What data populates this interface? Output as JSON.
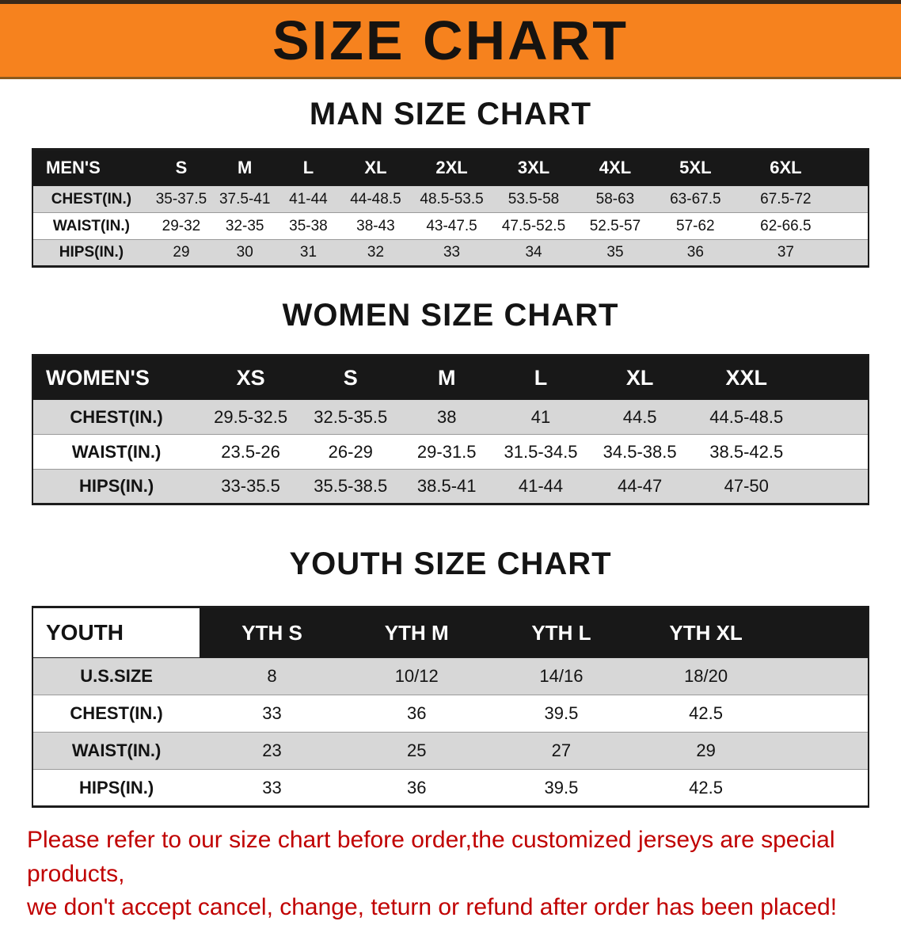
{
  "banner": {
    "title": "SIZE CHART"
  },
  "colors": {
    "banner_bg": "#f6821e",
    "header_bg": "#181818",
    "row_alt": "#d7d7d7",
    "disclaimer": "#c00000"
  },
  "tables": {
    "men": {
      "heading": "MAN SIZE CHART",
      "corner_label": "MEN'S",
      "columns": [
        "S",
        "M",
        "L",
        "XL",
        "2XL",
        "3XL",
        "4XL",
        "5XL",
        "6XL"
      ],
      "rows": [
        {
          "label": "CHEST(IN.)",
          "values": [
            "35-37.5",
            "37.5-41",
            "41-44",
            "44-48.5",
            "48.5-53.5",
            "53.5-58",
            "58-63",
            "63-67.5",
            "67.5-72"
          ]
        },
        {
          "label": "WAIST(IN.)",
          "values": [
            "29-32",
            "32-35",
            "35-38",
            "38-43",
            "43-47.5",
            "47.5-52.5",
            "52.5-57",
            "57-62",
            "62-66.5"
          ]
        },
        {
          "label": "HIPS(IN.)",
          "values": [
            "29",
            "30",
            "31",
            "32",
            "33",
            "34",
            "35",
            "36",
            "37"
          ]
        }
      ]
    },
    "women": {
      "heading": "WOMEN SIZE CHART",
      "corner_label": "WOMEN'S",
      "columns": [
        "XS",
        "S",
        "M",
        "L",
        "XL",
        "XXL"
      ],
      "rows": [
        {
          "label": "CHEST(IN.)",
          "values": [
            "29.5-32.5",
            "32.5-35.5",
            "38",
            "41",
            "44.5",
            "44.5-48.5"
          ]
        },
        {
          "label": "WAIST(IN.)",
          "values": [
            "23.5-26",
            "26-29",
            "29-31.5",
            "31.5-34.5",
            "34.5-38.5",
            "38.5-42.5"
          ]
        },
        {
          "label": "HIPS(IN.)",
          "values": [
            "33-35.5",
            "35.5-38.5",
            "38.5-41",
            "41-44",
            "44-47",
            "47-50"
          ]
        }
      ]
    },
    "youth": {
      "heading": "YOUTH SIZE CHART",
      "corner_label": "YOUTH",
      "columns": [
        "YTH S",
        "YTH M",
        "YTH L",
        "YTH XL"
      ],
      "rows": [
        {
          "label": "U.S.SIZE",
          "values": [
            "8",
            "10/12",
            "14/16",
            "18/20"
          ]
        },
        {
          "label": "CHEST(IN.)",
          "values": [
            "33",
            "36",
            "39.5",
            "42.5"
          ]
        },
        {
          "label": "WAIST(IN.)",
          "values": [
            "23",
            "25",
            "27",
            "29"
          ]
        },
        {
          "label": "HIPS(IN.)",
          "values": [
            "33",
            "36",
            "39.5",
            "42.5"
          ]
        }
      ]
    }
  },
  "disclaimer": {
    "line1": "Please refer to our size chart before order,the customized jerseys are special products,",
    "line2": "we don't accept cancel, change, teturn or refund after order has been placed!"
  }
}
